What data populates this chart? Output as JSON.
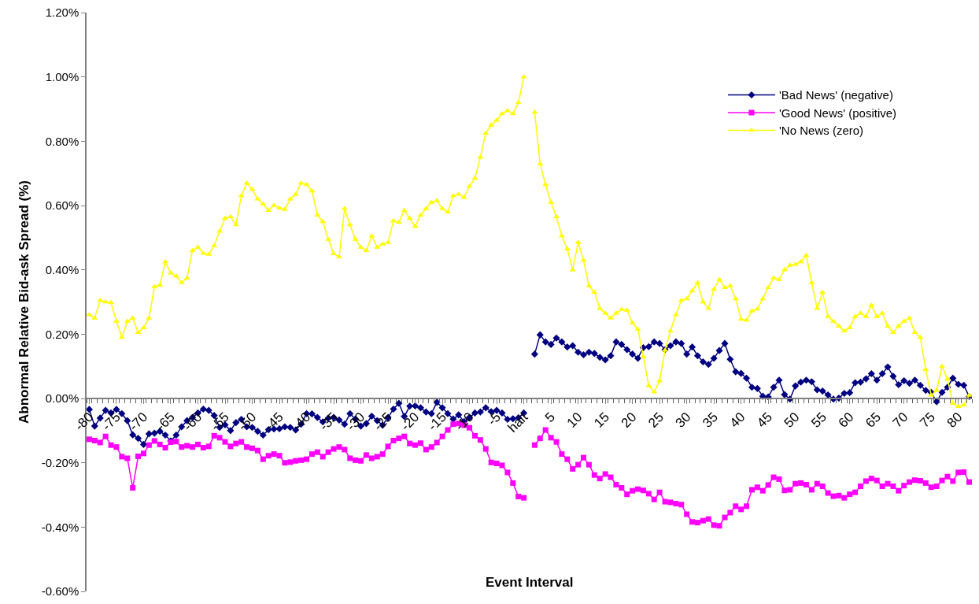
{
  "chart_data": {
    "type": "line",
    "xlabel": "Event Interval",
    "ylabel": "Abnormal Relative Bid-ask Spread (%)",
    "categories": [
      "-80",
      null,
      null,
      null,
      null,
      "-75",
      null,
      null,
      null,
      null,
      "-70",
      null,
      null,
      null,
      null,
      "-65",
      null,
      null,
      null,
      null,
      "-60",
      null,
      null,
      null,
      null,
      "-55",
      null,
      null,
      null,
      null,
      "-50",
      null,
      null,
      null,
      null,
      "-45",
      null,
      null,
      null,
      null,
      "-40",
      null,
      null,
      null,
      null,
      "-35",
      null,
      null,
      null,
      null,
      "-30",
      null,
      null,
      null,
      null,
      "-25",
      null,
      null,
      null,
      null,
      "-20",
      null,
      null,
      null,
      null,
      "-15",
      null,
      null,
      null,
      null,
      "-10",
      null,
      null,
      null,
      null,
      "-5",
      null,
      null,
      null,
      null,
      "halt",
      null,
      null,
      null,
      null,
      "5",
      null,
      null,
      null,
      null,
      "10",
      null,
      null,
      null,
      null,
      "15",
      null,
      null,
      null,
      null,
      "20",
      null,
      null,
      null,
      null,
      "25",
      null,
      null,
      null,
      null,
      "30",
      null,
      null,
      null,
      null,
      "35",
      null,
      null,
      null,
      null,
      "40",
      null,
      null,
      null,
      null,
      "45",
      null,
      null,
      null,
      null,
      "50",
      null,
      null,
      null,
      null,
      "55",
      null,
      null,
      null,
      null,
      "60",
      null,
      null,
      null,
      null,
      "65",
      null,
      null,
      null,
      null,
      "70",
      null,
      null,
      null,
      null,
      "75",
      null,
      null,
      null,
      null,
      "80",
      null,
      null
    ],
    "series": [
      {
        "name": "'Bad News' (negative)",
        "color": "#000080",
        "marker": "diamond",
        "values": [
          -0.034,
          -0.086,
          -0.061,
          -0.037,
          -0.045,
          -0.034,
          -0.047,
          -0.069,
          -0.113,
          -0.124,
          -0.143,
          -0.11,
          -0.108,
          -0.102,
          -0.114,
          -0.132,
          -0.114,
          -0.088,
          -0.069,
          -0.059,
          -0.045,
          -0.033,
          -0.037,
          -0.053,
          -0.09,
          -0.082,
          -0.1,
          -0.075,
          -0.065,
          -0.088,
          -0.09,
          -0.102,
          -0.114,
          -0.097,
          -0.095,
          -0.094,
          -0.088,
          -0.09,
          -0.098,
          -0.08,
          -0.047,
          -0.048,
          -0.059,
          -0.073,
          -0.061,
          -0.059,
          -0.067,
          -0.08,
          -0.047,
          -0.064,
          -0.086,
          -0.078,
          -0.055,
          -0.069,
          -0.083,
          -0.059,
          -0.033,
          -0.015,
          -0.056,
          -0.024,
          -0.023,
          -0.029,
          -0.042,
          -0.047,
          -0.012,
          -0.029,
          -0.047,
          -0.064,
          -0.051,
          -0.072,
          -0.059,
          -0.045,
          -0.042,
          -0.029,
          -0.041,
          -0.037,
          -0.045,
          -0.065,
          -0.063,
          -0.06,
          -0.045,
          null,
          0.138,
          0.198,
          0.176,
          0.168,
          0.188,
          0.176,
          0.16,
          0.164,
          0.144,
          0.136,
          0.144,
          0.14,
          0.128,
          0.12,
          0.133,
          0.176,
          0.168,
          0.152,
          0.138,
          0.125,
          0.158,
          0.161,
          0.176,
          0.171,
          0.152,
          0.164,
          0.176,
          0.171,
          0.138,
          0.16,
          0.133,
          0.114,
          0.106,
          0.125,
          0.149,
          0.171,
          0.122,
          0.083,
          0.078,
          0.063,
          0.035,
          0.031,
          0.007,
          0.005,
          0.035,
          0.057,
          0.012,
          -0.002,
          0.039,
          0.051,
          0.057,
          0.052,
          0.027,
          0.023,
          0.011,
          -0.002,
          0.001,
          0.016,
          0.018,
          0.049,
          0.051,
          0.061,
          0.077,
          0.057,
          0.077,
          0.098,
          0.069,
          0.043,
          0.055,
          0.047,
          0.057,
          0.041,
          0.025,
          0.019,
          -0.01,
          0.019,
          0.035,
          0.063,
          0.044,
          0.041,
          0.006
        ]
      },
      {
        "name": "'Good News' (positive)",
        "color": "#ff00ff",
        "marker": "square",
        "values": [
          -0.127,
          -0.131,
          -0.137,
          -0.118,
          -0.145,
          -0.151,
          -0.181,
          -0.186,
          -0.278,
          -0.18,
          -0.171,
          -0.145,
          -0.132,
          -0.143,
          -0.153,
          -0.136,
          -0.134,
          -0.151,
          -0.147,
          -0.151,
          -0.143,
          -0.153,
          -0.149,
          -0.116,
          -0.122,
          -0.135,
          -0.149,
          -0.14,
          -0.135,
          -0.151,
          -0.155,
          -0.162,
          -0.189,
          -0.178,
          -0.173,
          -0.178,
          -0.2,
          -0.198,
          -0.194,
          -0.192,
          -0.189,
          -0.173,
          -0.167,
          -0.181,
          -0.167,
          -0.157,
          -0.151,
          -0.159,
          -0.186,
          -0.192,
          -0.194,
          -0.176,
          -0.186,
          -0.181,
          -0.173,
          -0.149,
          -0.131,
          -0.124,
          -0.118,
          -0.14,
          -0.145,
          -0.139,
          -0.159,
          -0.151,
          -0.137,
          -0.118,
          -0.098,
          -0.08,
          -0.078,
          -0.083,
          -0.091,
          -0.116,
          -0.129,
          -0.157,
          -0.199,
          -0.202,
          -0.208,
          -0.23,
          -0.263,
          -0.305,
          -0.309,
          null,
          -0.145,
          -0.124,
          -0.098,
          -0.122,
          -0.135,
          -0.173,
          -0.189,
          -0.219,
          -0.206,
          -0.184,
          -0.206,
          -0.238,
          -0.249,
          -0.235,
          -0.245,
          -0.268,
          -0.278,
          -0.298,
          -0.287,
          -0.282,
          -0.286,
          -0.296,
          -0.314,
          -0.292,
          -0.321,
          -0.323,
          -0.327,
          -0.33,
          -0.36,
          -0.384,
          -0.386,
          -0.38,
          -0.375,
          -0.394,
          -0.396,
          -0.37,
          -0.355,
          -0.335,
          -0.345,
          -0.335,
          -0.284,
          -0.276,
          -0.287,
          -0.269,
          -0.245,
          -0.251,
          -0.286,
          -0.284,
          -0.265,
          -0.263,
          -0.268,
          -0.284,
          -0.265,
          -0.273,
          -0.294,
          -0.304,
          -0.302,
          -0.309,
          -0.298,
          -0.292,
          -0.273,
          -0.257,
          -0.249,
          -0.255,
          -0.273,
          -0.265,
          -0.273,
          -0.287,
          -0.271,
          -0.26,
          -0.254,
          -0.256,
          -0.263,
          -0.276,
          -0.273,
          -0.255,
          -0.243,
          -0.257,
          -0.23,
          -0.229,
          -0.26
        ]
      },
      {
        "name": "'No News (zero)",
        "color": "#ffff00",
        "marker": "triangle",
        "values": [
          0.26,
          0.25,
          0.305,
          0.3,
          0.298,
          0.24,
          0.19,
          0.24,
          0.25,
          0.205,
          0.22,
          0.25,
          0.348,
          0.352,
          0.425,
          0.39,
          0.38,
          0.36,
          0.375,
          0.46,
          0.47,
          0.451,
          0.448,
          0.475,
          0.52,
          0.56,
          0.565,
          0.54,
          0.63,
          0.67,
          0.65,
          0.62,
          0.605,
          0.585,
          0.6,
          0.592,
          0.588,
          0.62,
          0.635,
          0.67,
          0.665,
          0.645,
          0.57,
          0.55,
          0.495,
          0.45,
          0.44,
          0.59,
          0.54,
          0.495,
          0.47,
          0.46,
          0.505,
          0.47,
          0.48,
          0.485,
          0.552,
          0.548,
          0.585,
          0.56,
          0.535,
          0.57,
          0.59,
          0.61,
          0.615,
          0.59,
          0.58,
          0.63,
          0.635,
          0.625,
          0.66,
          0.685,
          0.75,
          0.825,
          0.85,
          0.865,
          0.885,
          0.895,
          0.885,
          0.92,
          1.0,
          null,
          0.89,
          0.73,
          0.665,
          0.61,
          0.565,
          0.505,
          0.465,
          0.4,
          0.485,
          0.43,
          0.35,
          0.33,
          0.28,
          0.265,
          0.25,
          0.265,
          0.277,
          0.274,
          0.235,
          0.215,
          0.13,
          0.04,
          0.02,
          0.055,
          0.15,
          0.21,
          0.26,
          0.305,
          0.31,
          0.335,
          0.36,
          0.3,
          0.28,
          0.34,
          0.37,
          0.345,
          0.35,
          0.31,
          0.246,
          0.243,
          0.272,
          0.278,
          0.31,
          0.345,
          0.375,
          0.37,
          0.4,
          0.414,
          0.417,
          0.425,
          0.445,
          0.36,
          0.28,
          0.33,
          0.255,
          0.24,
          0.225,
          0.21,
          0.22,
          0.255,
          0.265,
          0.255,
          0.29,
          0.255,
          0.265,
          0.225,
          0.205,
          0.225,
          0.24,
          0.25,
          0.205,
          0.19,
          0.09,
          0.01,
          0.025,
          0.1,
          0.06,
          -0.015,
          -0.025,
          -0.02,
          0.01
        ]
      }
    ],
    "ylim": [
      -0.6,
      1.2
    ],
    "yticks": [
      {
        "value": -0.6,
        "label": "-0.60%"
      },
      {
        "value": -0.4,
        "label": "-0.40%"
      },
      {
        "value": -0.2,
        "label": "-0.20%"
      },
      {
        "value": 0,
        "label": "0.00%"
      },
      {
        "value": 0.2,
        "label": "0.20%"
      },
      {
        "value": 0.4,
        "label": "0.40%"
      },
      {
        "value": 0.6,
        "label": "0.60%"
      },
      {
        "value": 0.8,
        "label": "0.80%"
      },
      {
        "value": 1.0,
        "label": "1.00%"
      },
      {
        "value": 1.2,
        "label": "1.20%"
      }
    ],
    "grid": false,
    "legend": "top right",
    "line_style": "solid"
  }
}
